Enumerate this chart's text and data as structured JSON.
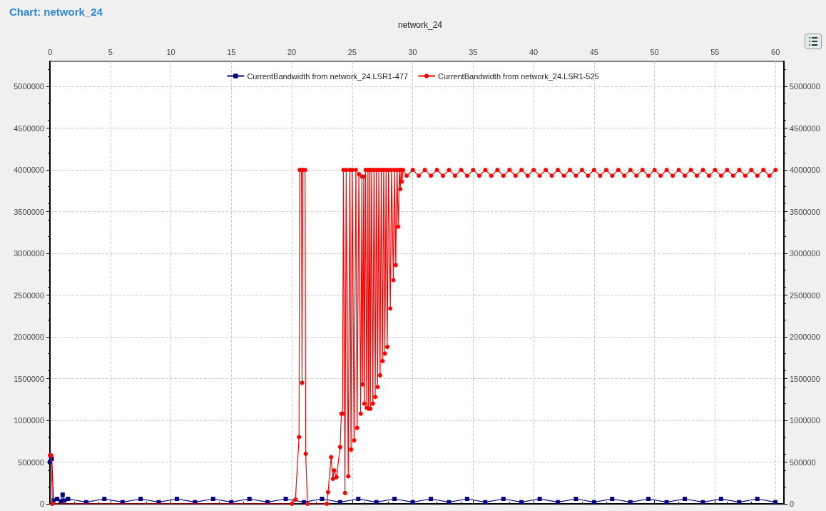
{
  "chart_data": {
    "type": "line",
    "title": "Chart: network_24",
    "subtitle": "network_24",
    "xlim": [
      0,
      60.7
    ],
    "xticks": [
      0,
      5,
      10,
      15,
      20,
      25,
      30,
      35,
      40,
      45,
      50,
      55,
      60
    ],
    "ylim": [
      0,
      5300000
    ],
    "yticks": [
      0,
      500000,
      1000000,
      1500000,
      2000000,
      2500000,
      3000000,
      3500000,
      4000000,
      4500000,
      5000000
    ],
    "y2lim": [
      0,
      5300000
    ],
    "y2ticks": [
      0,
      500000,
      1000000,
      1500000,
      2000000,
      2500000,
      3000000,
      3500000,
      4000000,
      4500000,
      5000000
    ],
    "grid": true,
    "legend": "top",
    "series": [
      {
        "name": "CurrentBandwidth from network_24.LSR1-477",
        "color": "#000080",
        "marker": "square",
        "x": [
          0,
          0.15,
          0.3,
          0.6,
          0.9,
          1.05,
          1.2,
          1.5,
          3,
          4.5,
          6,
          7.5,
          9,
          10.5,
          12,
          13.5,
          15,
          16.5,
          18,
          19.5,
          21,
          22.5,
          24,
          25.5,
          27,
          28.5,
          30,
          31.5,
          33,
          34.5,
          36,
          37.5,
          39,
          40.5,
          42,
          43.5,
          45,
          46.5,
          48,
          49.5,
          51,
          52.5,
          54,
          55.5,
          57,
          58.5,
          60
        ],
        "values": [
          500000,
          540000,
          40000,
          60000,
          30000,
          110000,
          40000,
          60000,
          20000,
          60000,
          20000,
          60000,
          20000,
          60000,
          20000,
          60000,
          20000,
          60000,
          20000,
          60000,
          20000,
          60000,
          20000,
          60000,
          20000,
          60000,
          20000,
          60000,
          20000,
          60000,
          20000,
          60000,
          20000,
          60000,
          20000,
          60000,
          20000,
          60000,
          20000,
          60000,
          20000,
          60000,
          20000,
          60000,
          20000,
          60000,
          20000
        ]
      },
      {
        "name": "CurrentBandwidth from network_24.LSR1-525",
        "color": "#ff0000",
        "marker": "circle",
        "x": [
          0,
          0.1,
          0.2,
          20.0,
          20.3,
          20.6,
          20.65,
          20.8,
          20.85,
          20.9,
          21.1,
          21.15,
          21.3,
          22.9,
          23.0,
          23.25,
          23.4,
          23.5,
          23.7,
          24.0,
          24.1,
          24.2,
          24.27,
          24.4,
          24.5,
          24.67,
          24.8,
          24.9,
          25.0,
          25.15,
          25.3,
          25.4,
          25.55,
          25.7,
          25.8,
          25.85,
          25.95,
          26.0,
          26.1,
          26.2,
          26.3,
          26.35,
          26.45,
          26.5,
          26.6,
          26.7,
          26.8,
          26.9,
          27.0,
          27.1,
          27.2,
          27.3,
          27.4,
          27.5,
          27.6,
          27.7,
          27.8,
          27.9,
          28.0,
          28.15,
          28.25,
          28.4,
          28.5,
          28.6,
          28.7,
          28.8,
          28.9,
          28.97,
          29.05,
          29.1,
          29.2,
          29.5,
          30,
          30.5,
          31,
          31.5,
          32,
          32.5,
          33,
          33.5,
          34,
          34.5,
          35,
          35.5,
          36,
          36.5,
          37,
          37.5,
          38,
          38.5,
          39,
          39.5,
          40,
          40.5,
          41,
          41.5,
          42,
          42.5,
          43,
          43.5,
          44,
          44.5,
          45,
          45.5,
          46,
          46.5,
          47,
          47.5,
          48,
          48.5,
          49,
          49.5,
          50,
          50.5,
          51,
          51.5,
          52,
          52.5,
          53,
          53.5,
          54,
          54.5,
          55,
          55.5,
          56,
          56.5,
          57,
          57.5,
          58,
          58.5,
          59,
          59.5,
          60
        ],
        "values": [
          580000,
          580000,
          0,
          0,
          50000,
          800000,
          4000000,
          4000000,
          1450000,
          4000000,
          4000000,
          600000,
          0,
          0,
          140000,
          560000,
          300000,
          400000,
          320000,
          680000,
          1080000,
          1080000,
          4000000,
          130000,
          4000000,
          330000,
          4000000,
          650000,
          4000000,
          760000,
          4000000,
          910000,
          3950000,
          1080000,
          3920000,
          1430000,
          3920000,
          1200000,
          4000000,
          1150000,
          4000000,
          1140000,
          4000000,
          1140000,
          4000000,
          1200000,
          4000000,
          1280000,
          4000000,
          1400000,
          4000000,
          1540000,
          4000000,
          1710000,
          4000000,
          1800000,
          4000000,
          1880000,
          4000000,
          2340000,
          4000000,
          2680000,
          4000000,
          2860000,
          4000000,
          3320000,
          4000000,
          3770000,
          4000000,
          3860000,
          4000000,
          3930000,
          4000000,
          3930000,
          4000000,
          3930000,
          4000000,
          3930000,
          4000000,
          3930000,
          4000000,
          3930000,
          4000000,
          3930000,
          4000000,
          3930000,
          4000000,
          3930000,
          4000000,
          3930000,
          4000000,
          3930000,
          4000000,
          3930000,
          4000000,
          3930000,
          4000000,
          3930000,
          4000000,
          3930000,
          4000000,
          3930000,
          4000000,
          3930000,
          4000000,
          3930000,
          4000000,
          3930000,
          4000000,
          3930000,
          4000000,
          3930000,
          4000000,
          3930000,
          4000000,
          3930000,
          4000000,
          3930000,
          4000000,
          3930000,
          4000000,
          3930000,
          4000000,
          3930000,
          4000000,
          3930000,
          4000000,
          3930000,
          4000000,
          3930000,
          4000000,
          3930000,
          4000000
        ]
      }
    ]
  }
}
